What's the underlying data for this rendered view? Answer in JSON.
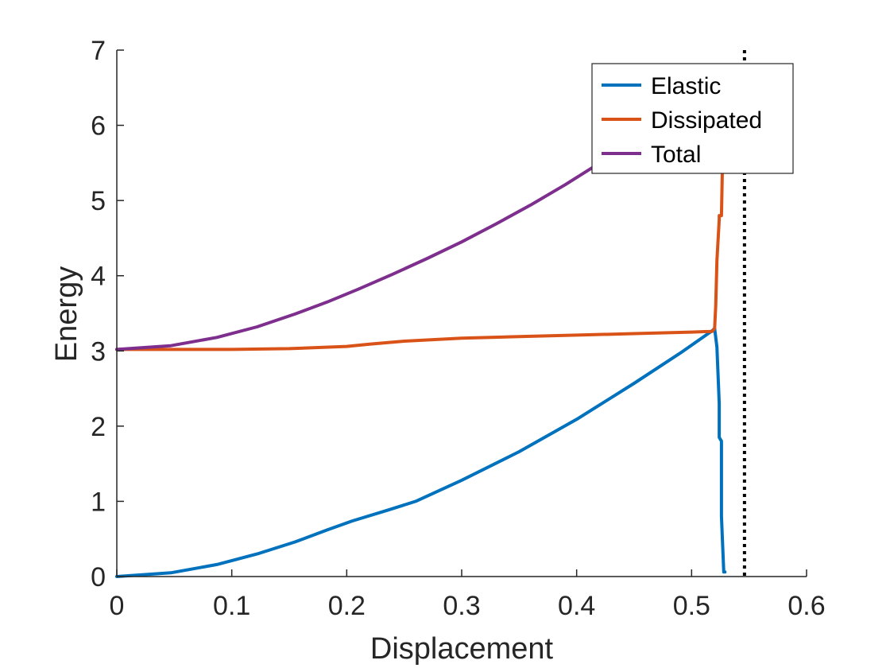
{
  "chart_data": {
    "type": "line",
    "title": "",
    "xlabel": "Displacement",
    "ylabel": "Energy",
    "xlim": [
      0,
      0.6
    ],
    "ylim": [
      0,
      7
    ],
    "xticks": [
      "0",
      "0.1",
      "0.2",
      "0.3",
      "0.4",
      "0.5",
      "0.6"
    ],
    "yticks": [
      "0",
      "1",
      "2",
      "3",
      "4",
      "5",
      "6",
      "7"
    ],
    "grid": false,
    "legend_position": "top-right",
    "vertical_line": {
      "x": 0.546,
      "style": "dotted",
      "color": "#000000"
    },
    "series": [
      {
        "name": "Elastic",
        "color": "#0072BD",
        "x": [
          0,
          0.047,
          0.087,
          0.122,
          0.155,
          0.183,
          0.205,
          0.235,
          0.26,
          0.3,
          0.35,
          0.4,
          0.45,
          0.49,
          0.518,
          0.52,
          0.522,
          0.524,
          0.524,
          0.526,
          0.526,
          0.528,
          0.529
        ],
        "y": [
          0,
          0.05,
          0.16,
          0.3,
          0.46,
          0.62,
          0.74,
          0.88,
          1.0,
          1.28,
          1.66,
          2.09,
          2.57,
          2.97,
          3.27,
          3.3,
          3.05,
          2.3,
          1.85,
          1.8,
          0.8,
          0.06,
          0.06
        ]
      },
      {
        "name": "Dissipated",
        "color": "#D95319",
        "x": [
          0,
          0.05,
          0.1,
          0.15,
          0.2,
          0.22,
          0.25,
          0.3,
          0.35,
          0.4,
          0.45,
          0.5,
          0.518,
          0.52,
          0.521,
          0.522,
          0.524,
          0.524,
          0.526,
          0.527,
          0.528
        ],
        "y": [
          3.02,
          3.02,
          3.02,
          3.03,
          3.06,
          3.09,
          3.13,
          3.17,
          3.19,
          3.21,
          3.23,
          3.25,
          3.26,
          3.3,
          3.6,
          4.2,
          4.75,
          4.8,
          4.8,
          5.6,
          6.4
        ]
      },
      {
        "name": "Total",
        "color": "#7E2F8E",
        "x": [
          0,
          0.047,
          0.087,
          0.122,
          0.155,
          0.183,
          0.21,
          0.24,
          0.27,
          0.3,
          0.33,
          0.36,
          0.39,
          0.415,
          0.43
        ],
        "y": [
          3.02,
          3.07,
          3.18,
          3.32,
          3.49,
          3.65,
          3.82,
          4.02,
          4.23,
          4.45,
          4.69,
          4.94,
          5.21,
          5.45,
          5.58
        ]
      }
    ]
  }
}
